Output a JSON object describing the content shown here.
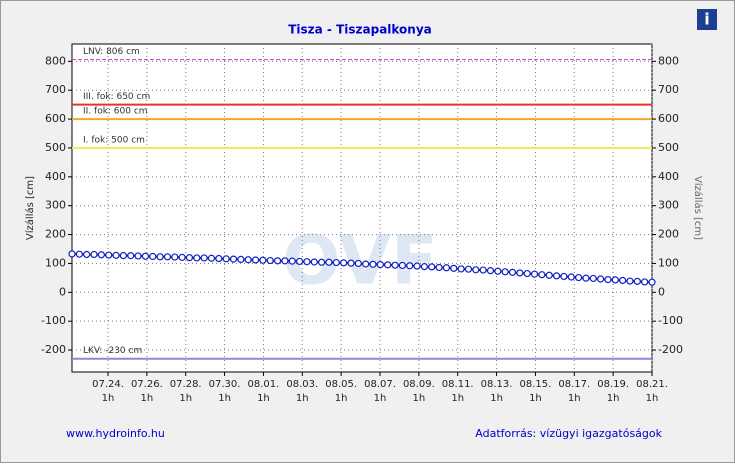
{
  "chart_data": {
    "type": "line",
    "title": "Tisza - Tiszapalkonya",
    "y_label": "Vízállás [cm]",
    "watermark": "OVF",
    "footer_left": "www.hydroinfo.hu",
    "footer_right": "Adatforrás: vízügyi igazgatóságok",
    "info": "i",
    "ylim": [
      -276,
      860
    ],
    "yticks": [
      -200,
      -100,
      0,
      100,
      200,
      300,
      400,
      500,
      600,
      700,
      800
    ],
    "grid": true,
    "xticks": [
      [
        "07.24.",
        "1h"
      ],
      [
        "07.26.",
        "1h"
      ],
      [
        "07.28.",
        "1h"
      ],
      [
        "07.30.",
        "1h"
      ],
      [
        "08.01.",
        "1h"
      ],
      [
        "08.03.",
        "1h"
      ],
      [
        "08.05.",
        "1h"
      ],
      [
        "08.07.",
        "1h"
      ],
      [
        "08.09.",
        "1h"
      ],
      [
        "08.11.",
        "1h"
      ],
      [
        "08.13.",
        "1h"
      ],
      [
        "08.15.",
        "1h"
      ],
      [
        "08.17.",
        "1h"
      ],
      [
        "08.19.",
        "1h"
      ],
      [
        "08.21.",
        "1h"
      ]
    ],
    "thresholds": [
      {
        "value": 806,
        "label": "LNV: 806 cm",
        "color": "#cc33cc",
        "dash": true
      },
      {
        "value": 650,
        "label": "III. fok: 650 cm",
        "color": "#e8322a",
        "dash": false
      },
      {
        "value": 600,
        "label": "II. fok: 600 cm",
        "color": "#f5a623",
        "dash": false
      },
      {
        "value": 500,
        "label": "I. fok: 500 cm",
        "color": "#eeee55",
        "dash": false
      },
      {
        "value": -230,
        "label": "LKV: -230 cm",
        "color": "#8888dd",
        "dash": false
      }
    ],
    "series": [
      {
        "color": "#1020c0",
        "values": [
          133,
          132,
          131,
          131,
          130,
          129,
          128,
          127,
          127,
          126,
          125,
          124,
          123,
          123,
          122,
          121,
          120,
          119,
          119,
          118,
          117,
          116,
          115,
          114,
          113,
          112,
          111,
          110,
          109,
          109,
          108,
          107,
          106,
          105,
          104,
          104,
          103,
          102,
          101,
          100,
          98,
          97,
          96,
          95,
          94,
          93,
          92,
          91,
          89,
          88,
          86,
          85,
          83,
          81,
          80,
          78,
          77,
          75,
          73,
          71,
          69,
          67,
          65,
          63,
          61,
          59,
          57,
          55,
          53,
          51,
          49,
          48,
          46,
          44,
          43,
          41,
          39,
          38,
          36,
          35
        ]
      }
    ]
  }
}
